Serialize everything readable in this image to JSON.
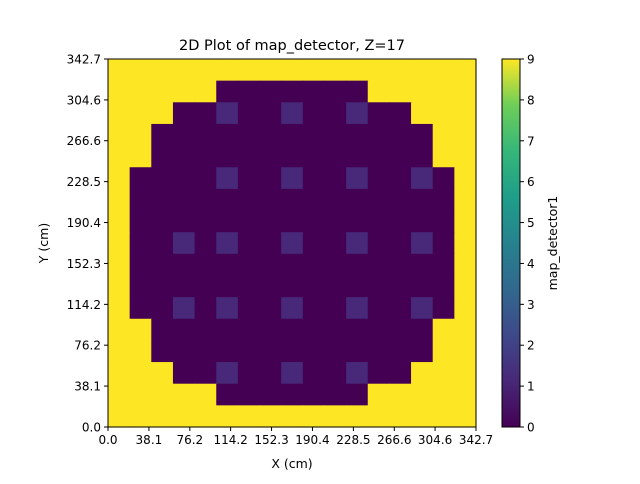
{
  "chart_data": {
    "type": "heatmap",
    "title": "2D Plot of map_detector, Z=17",
    "xlabel": "X (cm)",
    "ylabel": "Y (cm)",
    "colorbar_label": "map_detector1",
    "colormap": "viridis",
    "vmin": 0,
    "vmax": 9,
    "xlim": [
      0.0,
      342.7
    ],
    "ylim": [
      0.0,
      342.7
    ],
    "x_ticks": [
      "0.0",
      "38.1",
      "76.2",
      "114.2",
      "152.3",
      "190.4",
      "228.5",
      "266.6",
      "304.6",
      "342.7"
    ],
    "y_ticks": [
      "0.0",
      "38.1",
      "76.2",
      "114.2",
      "152.3",
      "190.4",
      "228.5",
      "266.6",
      "304.6",
      "342.7"
    ],
    "colorbar_ticks": [
      "0",
      "1",
      "2",
      "3",
      "4",
      "5",
      "6",
      "7",
      "8",
      "9"
    ],
    "grid": false,
    "grid_size": 17,
    "values_rows_top_to_bottom": [
      [
        9,
        9,
        9,
        9,
        9,
        9,
        9,
        9,
        9,
        9,
        9,
        9,
        9,
        9,
        9,
        9,
        9
      ],
      [
        9,
        9,
        9,
        9,
        9,
        0,
        0,
        0,
        0,
        0,
        0,
        0,
        9,
        9,
        9,
        9,
        9
      ],
      [
        9,
        9,
        9,
        0,
        0,
        1,
        0,
        0,
        1,
        0,
        0,
        1,
        0,
        0,
        9,
        9,
        9
      ],
      [
        9,
        9,
        0,
        0,
        0,
        0,
        0,
        0,
        0,
        0,
        0,
        0,
        0,
        0,
        0,
        9,
        9
      ],
      [
        9,
        9,
        0,
        0,
        0,
        0,
        0,
        0,
        0,
        0,
        0,
        0,
        0,
        0,
        0,
        9,
        9
      ],
      [
        9,
        0,
        0,
        0,
        0,
        1,
        0,
        0,
        1,
        0,
        0,
        1,
        0,
        0,
        1,
        0,
        9
      ],
      [
        9,
        0,
        0,
        0,
        0,
        0,
        0,
        0,
        0,
        0,
        0,
        0,
        0,
        0,
        0,
        0,
        9
      ],
      [
        9,
        0,
        0,
        0,
        0,
        0,
        0,
        0,
        0,
        0,
        0,
        0,
        0,
        0,
        0,
        0,
        9
      ],
      [
        9,
        0,
        0,
        1,
        0,
        1,
        0,
        0,
        1,
        0,
        0,
        1,
        0,
        0,
        1,
        0,
        9
      ],
      [
        9,
        0,
        0,
        0,
        0,
        0,
        0,
        0,
        0,
        0,
        0,
        0,
        0,
        0,
        0,
        0,
        9
      ],
      [
        9,
        0,
        0,
        0,
        0,
        0,
        0,
        0,
        0,
        0,
        0,
        0,
        0,
        0,
        0,
        0,
        9
      ],
      [
        9,
        0,
        0,
        1,
        0,
        1,
        0,
        0,
        1,
        0,
        0,
        1,
        0,
        0,
        1,
        0,
        9
      ],
      [
        9,
        9,
        0,
        0,
        0,
        0,
        0,
        0,
        0,
        0,
        0,
        0,
        0,
        0,
        0,
        9,
        9
      ],
      [
        9,
        9,
        0,
        0,
        0,
        0,
        0,
        0,
        0,
        0,
        0,
        0,
        0,
        0,
        0,
        9,
        9
      ],
      [
        9,
        9,
        9,
        0,
        0,
        1,
        0,
        0,
        1,
        0,
        0,
        1,
        0,
        0,
        9,
        9,
        9
      ],
      [
        9,
        9,
        9,
        9,
        9,
        0,
        0,
        0,
        0,
        0,
        0,
        0,
        9,
        9,
        9,
        9,
        9
      ],
      [
        9,
        9,
        9,
        9,
        9,
        9,
        9,
        9,
        9,
        9,
        9,
        9,
        9,
        9,
        9,
        9,
        9
      ]
    ]
  }
}
